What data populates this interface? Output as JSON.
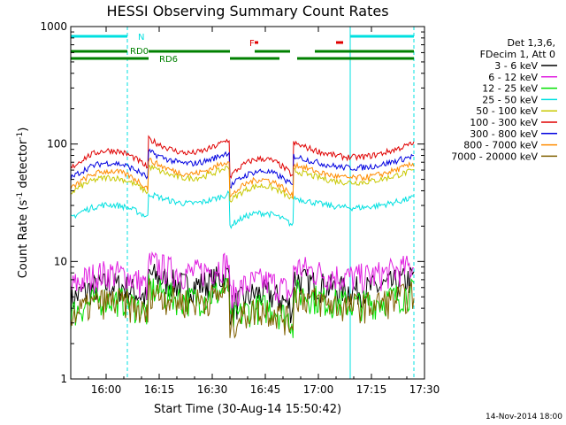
{
  "chart_data": {
    "type": "line",
    "title": "HESSI Observing Summary Count Rates",
    "xlabel": "Start Time (30-Aug-14 15:50:42)",
    "ylabel_main": "Count Rate (s",
    "ylabel_sup1": "-1",
    "ylabel_mid": " detector",
    "ylabel_sup2": "-1",
    "ylabel_end": ")",
    "y_scale": "log",
    "ylim": [
      1,
      1000
    ],
    "xlim": [
      "15:50",
      "17:30"
    ],
    "x_ticks": [
      "16:00",
      "16:15",
      "16:30",
      "16:45",
      "17:00",
      "17:15",
      "17:30"
    ],
    "y_ticks": [
      "1",
      "10",
      "100",
      "1000"
    ],
    "footer_date": "14-Nov-2014 18:00",
    "legend_header": [
      "Det 1,3,6,",
      "FDecim 1, Att 0"
    ],
    "series": [
      {
        "name": "3 - 6 keV",
        "color": "#000000",
        "level": 5.5,
        "amp": 0.3
      },
      {
        "name": "6 - 12 keV",
        "color": "#e020e0",
        "level": 7.0,
        "amp": 0.28
      },
      {
        "name": "12 - 25 keV",
        "color": "#00e000",
        "level": 4.2,
        "amp": 0.3
      },
      {
        "name": "25 - 50 keV",
        "color": "#00e0e0",
        "level": 27,
        "amp": 0.25
      },
      {
        "name": "50 - 100 keV",
        "color": "#c8c800",
        "level": 45,
        "amp": 0.3
      },
      {
        "name": "100 - 300 keV",
        "color": "#e00000",
        "level": 75,
        "amp": 0.35
      },
      {
        "name": "300 - 800 keV",
        "color": "#0000e0",
        "level": 60,
        "amp": 0.3
      },
      {
        "name": "800 - 7000 keV",
        "color": "#ff8c00",
        "level": 50,
        "amp": 0.35
      },
      {
        "name": "7000 - 20000 keV",
        "color": "#806000",
        "level": 4.0,
        "amp": 0.3
      }
    ],
    "flags": [
      {
        "label": "N",
        "color": "#00e0e0",
        "segments": [
          [
            "15:50",
            "16:06"
          ],
          [
            "17:09",
            "17:27"
          ]
        ]
      },
      {
        "label": "F",
        "color": "#e00000",
        "segments": [
          [
            "16:42",
            "16:43"
          ],
          [
            "17:05",
            "17:07"
          ]
        ]
      },
      {
        "label": "RD0",
        "color": "#008000",
        "segments": [
          [
            "15:50",
            "16:06"
          ],
          [
            "16:12",
            "16:35"
          ],
          [
            "16:42",
            "16:52"
          ],
          [
            "16:59",
            "17:27"
          ]
        ]
      },
      {
        "label": "RD6",
        "color": "#008000",
        "segments": [
          [
            "15:50",
            "16:12"
          ],
          [
            "16:35",
            "16:49"
          ],
          [
            "16:54",
            "17:27"
          ]
        ]
      }
    ],
    "vlines": [
      {
        "t": "15:50",
        "style": "solid",
        "color": "#00e0e0"
      },
      {
        "t": "16:06",
        "style": "dashed",
        "color": "#00e0e0"
      },
      {
        "t": "17:09",
        "style": "solid",
        "color": "#00e0e0"
      },
      {
        "t": "17:27",
        "style": "dashed",
        "color": "#00e0e0"
      }
    ]
  }
}
